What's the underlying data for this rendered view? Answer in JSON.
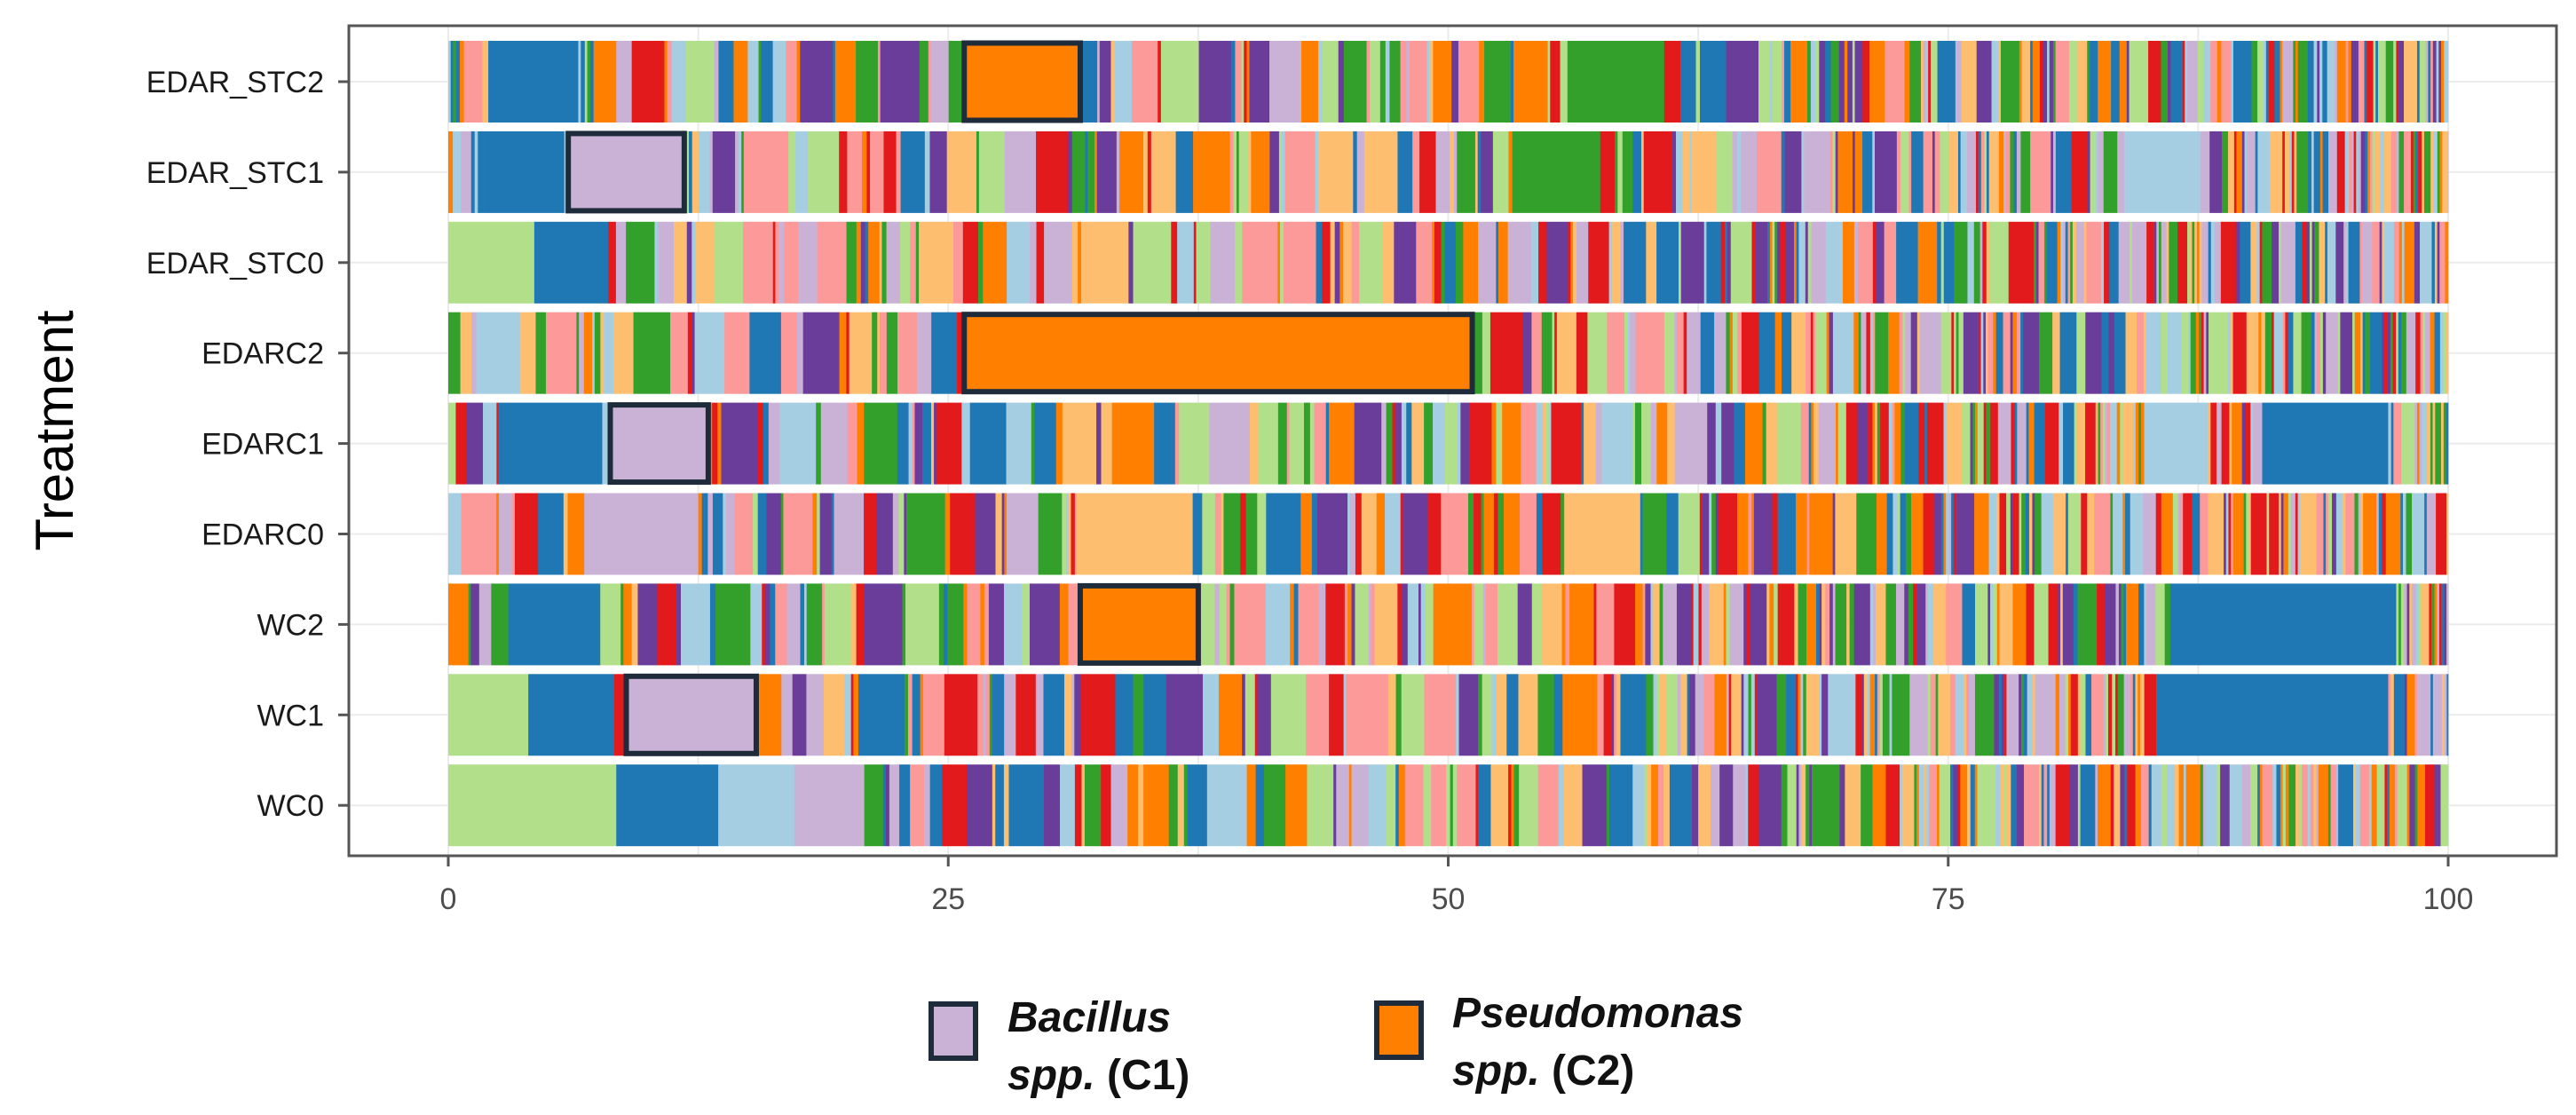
{
  "chart_data": {
    "type": "bar",
    "orientation": "horizontal",
    "stacked": true,
    "ylabel": "Treatment",
    "xlabel": "",
    "xlim": [
      0,
      100
    ],
    "x_ticks": [
      "0",
      "25",
      "50",
      "75",
      "100"
    ],
    "grid": true,
    "categories": [
      "EDAR_STC2",
      "EDAR_STC1",
      "EDAR_STC0",
      "EDARC2",
      "EDARC1",
      "EDARC0",
      "WC2",
      "WC1",
      "WC0"
    ],
    "palette": [
      "#b2df8a",
      "#1f78b4",
      "#a6cee3",
      "#cab2d6",
      "#ff7f00",
      "#fdbf6f",
      "#e31a1c",
      "#fb9a99",
      "#33a02c",
      "#6a3d9a"
    ],
    "highlight_border_color": "#1d2b3a",
    "highlights": [
      {
        "category": "EDAR_STC2",
        "taxon": "Pseudomonas",
        "start": 25.8,
        "end": 31.6,
        "color": "#ff7f00"
      },
      {
        "category": "EDAR_STC1",
        "taxon": "Bacillus",
        "start": 6.0,
        "end": 11.8,
        "color": "#cab2d6"
      },
      {
        "category": "EDARC2",
        "taxon": "Pseudomonas",
        "start": 25.8,
        "end": 51.2,
        "color": "#ff7f00"
      },
      {
        "category": "EDARC1",
        "taxon": "Bacillus",
        "start": 8.1,
        "end": 13.0,
        "color": "#cab2d6"
      },
      {
        "category": "WC2",
        "taxon": "Pseudomonas",
        "start": 31.6,
        "end": 37.5,
        "color": "#ff7f00"
      },
      {
        "category": "WC1",
        "taxon": "Bacillus",
        "start": 8.9,
        "end": 15.4,
        "color": "#cab2d6"
      }
    ],
    "large_segments": [
      {
        "category": "EDAR_STC2",
        "start": 2.0,
        "end": 6.5,
        "color": "#1f78b4"
      },
      {
        "category": "EDAR_STC2",
        "start": 56.6,
        "end": 60.8,
        "color": "#33a02c"
      },
      {
        "category": "EDAR_STC1",
        "start": 1.8,
        "end": 5.8,
        "color": "#1f78b4"
      },
      {
        "category": "EDAR_STC1",
        "start": 53.2,
        "end": 57.6,
        "color": "#33a02c"
      },
      {
        "category": "EDAR_STC1",
        "start": 83.8,
        "end": 87.6,
        "color": "#a6cee3"
      },
      {
        "category": "EDAR_STC0",
        "start": 0.0,
        "end": 4.3,
        "color": "#b2df8a"
      },
      {
        "category": "EDAR_STC0",
        "start": 4.3,
        "end": 8.0,
        "color": "#1f78b4"
      },
      {
        "category": "EDARC1",
        "start": 2.5,
        "end": 7.7,
        "color": "#1f78b4"
      },
      {
        "category": "EDARC1",
        "start": 84.8,
        "end": 88.0,
        "color": "#a6cee3"
      },
      {
        "category": "EDARC1",
        "start": 90.7,
        "end": 97.0,
        "color": "#1f78b4"
      },
      {
        "category": "EDARC0",
        "start": 6.8,
        "end": 12.5,
        "color": "#cab2d6"
      },
      {
        "category": "EDARC0",
        "start": 31.4,
        "end": 36.8,
        "color": "#fdbf6f"
      },
      {
        "category": "EDARC0",
        "start": 55.8,
        "end": 59.6,
        "color": "#fdbf6f"
      },
      {
        "category": "WC2",
        "start": 3.0,
        "end": 7.6,
        "color": "#1f78b4"
      },
      {
        "category": "WC2",
        "start": 86.1,
        "end": 97.4,
        "color": "#1f78b4"
      },
      {
        "category": "WC1",
        "start": 0.0,
        "end": 4.0,
        "color": "#b2df8a"
      },
      {
        "category": "WC1",
        "start": 4.0,
        "end": 8.3,
        "color": "#1f78b4"
      },
      {
        "category": "WC1",
        "start": 85.4,
        "end": 97.0,
        "color": "#1f78b4"
      },
      {
        "category": "WC0",
        "start": 0.0,
        "end": 8.4,
        "color": "#b2df8a"
      },
      {
        "category": "WC0",
        "start": 8.4,
        "end": 13.5,
        "color": "#1f78b4"
      },
      {
        "category": "WC0",
        "start": 13.5,
        "end": 17.3,
        "color": "#a6cee3"
      },
      {
        "category": "WC0",
        "start": 17.3,
        "end": 20.8,
        "color": "#cab2d6"
      }
    ],
    "legend": [
      {
        "line1": "Bacillus",
        "line2_italic": "spp.",
        "line2_suffix": " (C1)",
        "color": "#cab2d6"
      },
      {
        "line1": "Pseudomonas",
        "line2_italic": "spp.",
        "line2_suffix": " (C2)",
        "color": "#ff7f00"
      }
    ]
  }
}
